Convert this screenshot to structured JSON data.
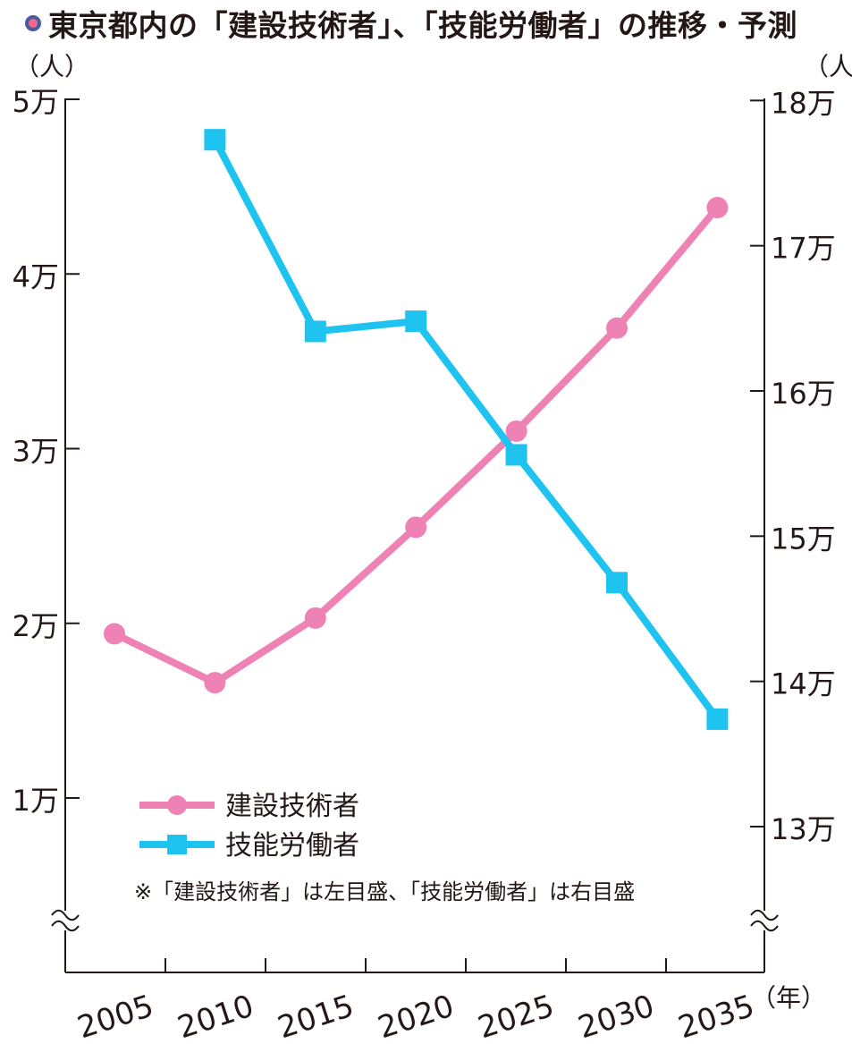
{
  "chart_title": "東京都内の「建設技術者」、「技能労働者」の推移・予測",
  "colors": {
    "engineers": "#ef82b4",
    "workers": "#1ec3ef",
    "axis": "#231815",
    "title_dot_ring": "#4a5aa0",
    "title_dot_center": "#f06a8c"
  },
  "chart_data": {
    "type": "line",
    "title": "東京都内の「建設技術者」、「技能労働者」の推移・予測",
    "x": [
      2005,
      2010,
      2015,
      2020,
      2025,
      2030,
      2035
    ],
    "x_tick_labels": [
      "2005",
      "2010",
      "2015",
      "2020",
      "2025",
      "2030",
      "2035"
    ],
    "x_unit": "（年）",
    "left_axis": {
      "unit": "（人）",
      "ticks": [
        10000,
        20000,
        30000,
        40000,
        50000
      ],
      "tick_labels": [
        "1万",
        "2万",
        "3万",
        "4万",
        "5万"
      ],
      "range": [
        0,
        50000
      ]
    },
    "right_axis": {
      "unit": "（人）",
      "ticks": [
        130000,
        140000,
        150000,
        160000,
        170000,
        180000
      ],
      "tick_labels": [
        "13万",
        "14万",
        "15万",
        "16万",
        "17万",
        "18万"
      ],
      "range": [
        120000,
        180000
      ]
    },
    "axis_break": true,
    "series": [
      {
        "name": "建設技術者",
        "axis": "left",
        "marker": "circle",
        "x": [
          2005,
          2010,
          2015,
          2020,
          2025,
          2030,
          2035
        ],
        "values": [
          19400,
          16600,
          20300,
          25500,
          31000,
          36900,
          43800
        ]
      },
      {
        "name": "技能労働者",
        "axis": "right",
        "marker": "square",
        "x": [
          2010,
          2015,
          2020,
          2025,
          2030,
          2035
        ],
        "values": [
          177300,
          164100,
          164800,
          155600,
          146800,
          137400
        ]
      }
    ],
    "legend_position": "bottom-left",
    "note": "※「建設技術者」は左目盛、「技能労働者」は右目盛"
  }
}
